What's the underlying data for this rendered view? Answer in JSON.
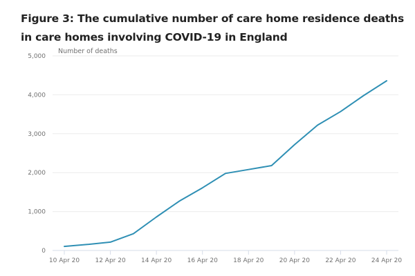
{
  "chart_data": {
    "type": "line",
    "title_line1": "Figure 3: The cumulative number of care home residence deaths",
    "title_line2": "in care homes involving COVID-19 in England",
    "ylabel": "Number of deaths",
    "xlabel": "",
    "ylim": [
      0,
      5000
    ],
    "yticks": [
      0,
      1000,
      2000,
      3000,
      4000,
      5000
    ],
    "ytick_labels": [
      "0",
      "1,000",
      "2,000",
      "3,000",
      "4,000",
      "5,000"
    ],
    "x": [
      "10 Apr 20",
      "11 Apr 20",
      "12 Apr 20",
      "13 Apr 20",
      "14 Apr 20",
      "15 Apr 20",
      "16 Apr 20",
      "17 Apr 20",
      "18 Apr 20",
      "19 Apr 20",
      "20 Apr 20",
      "21 Apr 20",
      "22 Apr 20",
      "23 Apr 20",
      "24 Apr 20"
    ],
    "xtick_labels": [
      "10 Apr 20",
      "12 Apr 20",
      "14 Apr 20",
      "16 Apr 20",
      "18 Apr 20",
      "20 Apr 20",
      "22 Apr 20",
      "24 Apr 20"
    ],
    "series": [
      {
        "name": "Cumulative deaths",
        "color": "#2e8fb4",
        "values": [
          105,
          155,
          215,
          430,
          860,
          1270,
          1610,
          1980,
          2080,
          2180,
          2720,
          3220,
          3570,
          3980,
          4360
        ]
      }
    ],
    "grid": true,
    "legend": "none"
  }
}
